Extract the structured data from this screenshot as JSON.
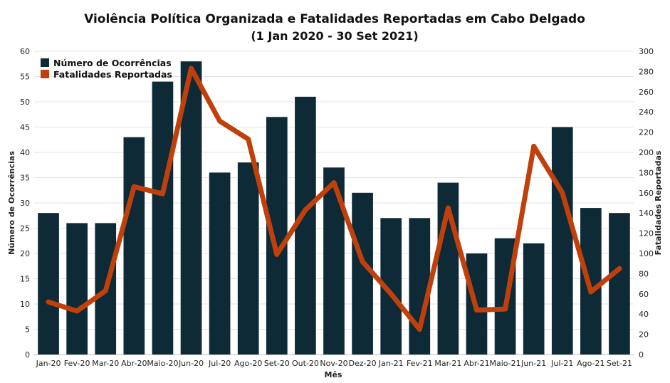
{
  "chart_data": {
    "type": "bar",
    "title": "Violência Política Organizada e Fatalidades Reportadas em Cabo Delgado",
    "subtitle": "(1 Jan 2020 - 30 Set 2021)",
    "xlabel": "Mês",
    "ylabel": "Número de Ocorrências",
    "y2label": "Fatalidades Reportadas",
    "categories": [
      "Jan-20",
      "Fev-20",
      "Mar-20",
      "Abr-20",
      "Maio-20",
      "Jun-20",
      "Jul-20",
      "Ago-20",
      "Set-20",
      "Out-20",
      "Nov-20",
      "Dez-20",
      "Jan-21",
      "Fev-21",
      "Mar-21",
      "Abr-21",
      "Maio-21",
      "Jun-21",
      "Jul-21",
      "Ago-21",
      "Set-21"
    ],
    "ylim": [
      0,
      60
    ],
    "y2lim": [
      0,
      300
    ],
    "yticks": [
      0,
      5,
      10,
      15,
      20,
      25,
      30,
      35,
      40,
      45,
      50,
      55,
      60
    ],
    "y2ticks": [
      0,
      20,
      40,
      60,
      80,
      100,
      120,
      140,
      160,
      180,
      200,
      220,
      240,
      260,
      280,
      300
    ],
    "grid": true,
    "legend_position": "top-left",
    "series": [
      {
        "name": "Número de Ocorrências",
        "type": "bar",
        "axis": "left",
        "color": "#0d2a36",
        "values": [
          28,
          26,
          26,
          43,
          54,
          58,
          36,
          38,
          47,
          51,
          37,
          32,
          27,
          27,
          34,
          20,
          23,
          22,
          45,
          29,
          28
        ]
      },
      {
        "name": "Fatalidades Reportadas",
        "type": "line",
        "axis": "right",
        "color": "#c0400c",
        "values": [
          52,
          43,
          63,
          166,
          159,
          283,
          231,
          213,
          99,
          143,
          170,
          92,
          60,
          25,
          145,
          44,
          45,
          206,
          160,
          62,
          85
        ]
      }
    ]
  }
}
